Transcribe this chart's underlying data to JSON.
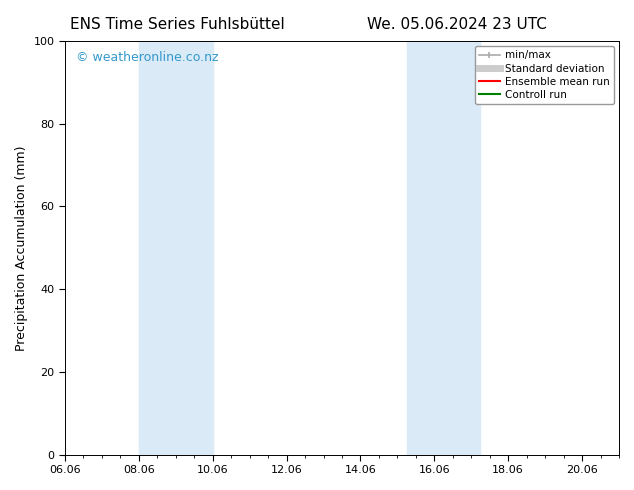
{
  "title_left": "ENS Time Series Fuhlsbüttel",
  "title_right": "We. 05.06.2024 23 UTC",
  "ylabel": "Precipitation Accumulation (mm)",
  "ylim": [
    0,
    100
  ],
  "yticks": [
    0,
    20,
    40,
    60,
    80,
    100
  ],
  "xlim": [
    0,
    15
  ],
  "xtick_labels": [
    "06.06",
    "08.06",
    "10.06",
    "12.06",
    "14.06",
    "16.06",
    "18.06",
    "20.06"
  ],
  "xtick_positions": [
    0,
    2,
    4,
    6,
    8,
    10,
    12,
    14
  ],
  "shaded_regions": [
    {
      "x_start": 2.0,
      "x_end": 4.0,
      "color": "#daeaf7"
    },
    {
      "x_start": 9.25,
      "x_end": 11.25,
      "color": "#daeaf7"
    }
  ],
  "watermark_text": "© weatheronline.co.nz",
  "watermark_color": "#3399cc",
  "legend_items": [
    {
      "label": "min/max",
      "color": "#aaaaaa",
      "lw": 1.2
    },
    {
      "label": "Standard deviation",
      "color": "#cccccc",
      "lw": 5
    },
    {
      "label": "Ensemble mean run",
      "color": "#ff0000",
      "lw": 1.5
    },
    {
      "label": "Controll run",
      "color": "#008000",
      "lw": 1.5
    }
  ],
  "bg_color": "#ffffff",
  "title_fontsize": 11,
  "tick_fontsize": 8,
  "label_fontsize": 9,
  "watermark_fontsize": 9
}
